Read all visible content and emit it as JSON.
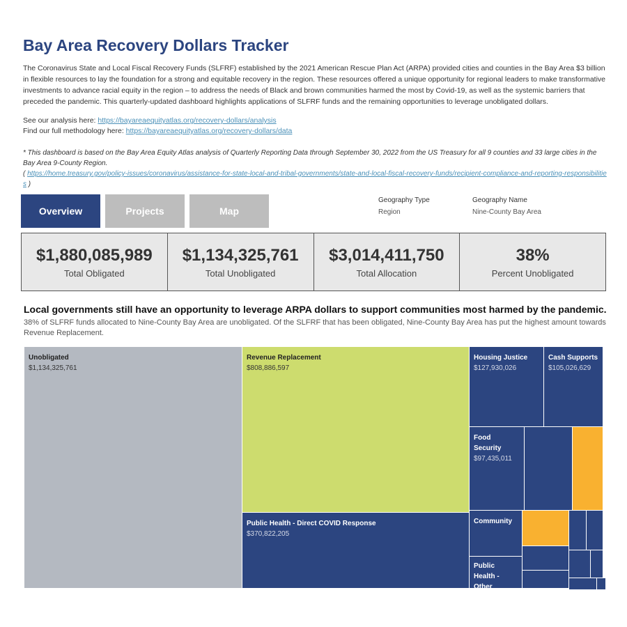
{
  "title": "Bay Area Recovery Dollars Tracker",
  "intro": "The Coronavirus State and Local Fiscal Recovery Funds (SLFRF) established by the 2021 American Rescue Plan Act (ARPA) provided cities and counties in the Bay Area $3 billion in flexible resources to lay the foundation for a strong and equitable recovery in the region. These resources offered a unique opportunity for regional leaders to make transformative investments to advance racial equity in the region – to address the needs of Black and brown communities harmed the most by Covid-19, as well as the systemic barriers that preceded the pandemic. This quarterly-updated dashboard highlights applications of SLFRF funds and the remaining opportunities to leverage unobligated dollars.",
  "links": {
    "analysis_label": "See our analysis here: ",
    "analysis_url": "https://bayareaequityatlas.org/recovery-dollars/analysis",
    "method_label": "Find our full methodology here: ",
    "method_url": "https://bayareaequityatlas.org/recovery-dollars/data"
  },
  "note": "* This dashboard is based on the Bay Area Equity Atlas analysis of Quarterly Reporting Data through September 30, 2022  from the US Treasury for all 9 counties and 33 large cities in the Bay Area 9-County Region.",
  "note_open": "( ",
  "note_url": "https://home.treasury.gov/policy-issues/coronavirus/assistance-for-state-local-and-tribal-governments/state-and-local-fiscal-recovery-funds/recipient-compliance-and-reporting-responsibilities",
  "note_close": " )",
  "tabs": [
    "Overview",
    "Projects",
    "Map"
  ],
  "geography": {
    "type_label": "Geography Type",
    "type_value": "Region",
    "name_label": "Geography Name",
    "name_value": "Nine-County Bay Area"
  },
  "kpis": [
    {
      "value": "$1,880,085,989",
      "label": "Total Obligated"
    },
    {
      "value": "$1,134,325,761",
      "label": "Total Unobligated"
    },
    {
      "value": "$3,014,411,750",
      "label": "Total Allocation"
    },
    {
      "value": "38%",
      "label": "Percent Unobligated"
    }
  ],
  "headline": "Local governments still have an opportunity to leverage ARPA dollars to support communities most harmed by the pandemic.",
  "subhead": "38% of SLFRF funds allocated to Nine-County Bay Area are unobligated. Of the SLFRF that has been obligated, Nine-County Bay Area has put the highest amount towards Revenue Replacement.",
  "treemap": [
    {
      "label": "Unobligated",
      "value": "$1,134,325,761"
    },
    {
      "label": "Revenue Replacement",
      "value": "$808,886,597"
    },
    {
      "label": "Public Health - Direct COVID Response",
      "value": "$370,822,205"
    },
    {
      "label": "Housing Justice",
      "value": "$127,930,026"
    },
    {
      "label": "Cash Supports",
      "value": "$105,026,629"
    },
    {
      "label": "Food Security",
      "value": "$97,435,011"
    },
    {
      "label": "Community"
    },
    {
      "label": "Public Health - Other"
    }
  ]
}
